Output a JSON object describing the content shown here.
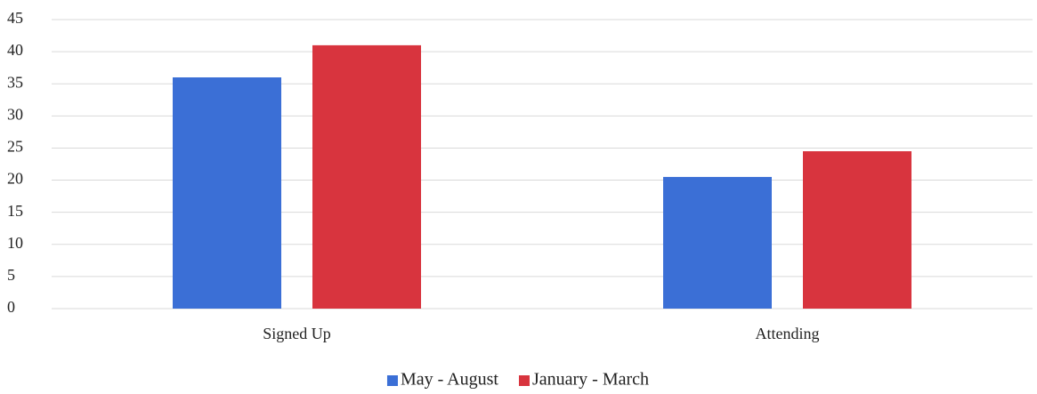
{
  "chart_data": {
    "type": "bar",
    "categories": [
      "Signed Up",
      "Attending"
    ],
    "series": [
      {
        "name": "May - August",
        "color": "#3b6fd6",
        "values": [
          36,
          20.5
        ]
      },
      {
        "name": "January - March",
        "color": "#d8343e",
        "values": [
          41,
          24.5
        ]
      }
    ],
    "ylim": [
      0,
      45
    ],
    "yticks": [
      0,
      5,
      10,
      15,
      20,
      25,
      30,
      35,
      40,
      45
    ],
    "grid": true,
    "legend": "bottom"
  }
}
